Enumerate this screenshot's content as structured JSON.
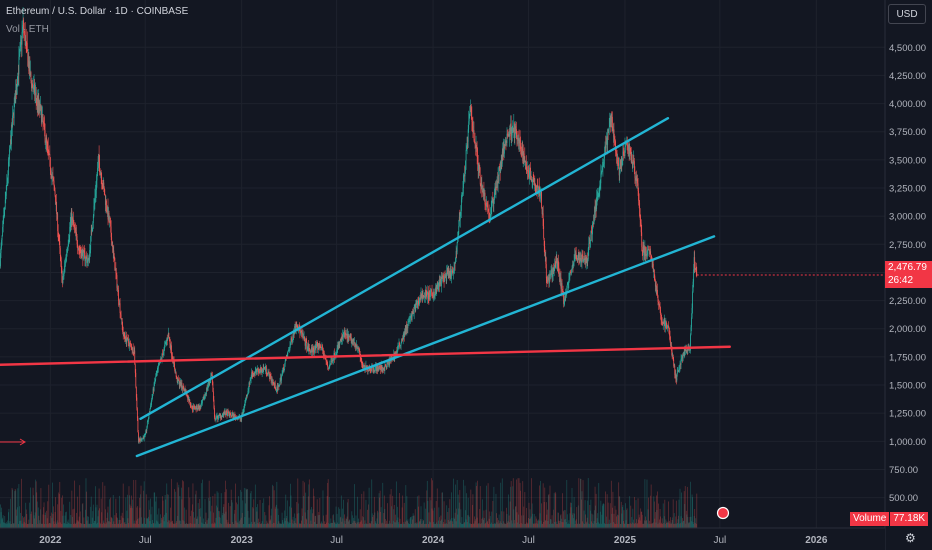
{
  "header": {
    "title": "Ethereum / U.S. Dollar · 1D · COINBASE",
    "volume_label": "Vol · ETH"
  },
  "currency_button": "USD",
  "last_price": {
    "price": "2,476.79",
    "countdown": "26:42",
    "color": "#f23645"
  },
  "volume_badge": {
    "label": "Volume",
    "value": "77.18K"
  },
  "colors": {
    "background": "#131722",
    "up": "#26a69a",
    "down": "#ef5350",
    "trendline": "#22b5d4",
    "support": "#f23645"
  },
  "chart_data": {
    "type": "candlestick",
    "timeframe": "1D",
    "x_tick_labels": [
      "2022",
      "Jul",
      "2023",
      "Jul",
      "2024",
      "Jul",
      "2025",
      "Jul",
      "2026"
    ],
    "x_ticks": [
      "2022-01-01",
      "2022-07-01",
      "2023-01-01",
      "2023-07-01",
      "2024-01-01",
      "2024-07-01",
      "2025-01-01",
      "2025-07-01",
      "2026-01-01"
    ],
    "y_tick_labels": [
      "4,500.00",
      "4,250.00",
      "4,000.00",
      "3,750.00",
      "3,500.00",
      "3,250.00",
      "3,000.00",
      "2,750.00",
      "2,500.00",
      "2,250.00",
      "2,000.00",
      "1,750.00",
      "1,500.00",
      "1,250.00",
      "1,000.00",
      "750.00",
      "500.00"
    ],
    "y_ticks": [
      4500,
      4250,
      4000,
      3750,
      3500,
      3250,
      3000,
      2750,
      2500,
      2250,
      2000,
      1750,
      1500,
      1250,
      1000,
      750,
      500
    ],
    "ylim": [
      230,
      4920
    ],
    "xlim": [
      "2021-09-27",
      "2026-05-12"
    ],
    "price_path": [
      [
        "2021-09-27",
        2600
      ],
      [
        "2021-10-20",
        3800
      ],
      [
        "2021-11-10",
        4700
      ],
      [
        "2021-11-25",
        4200
      ],
      [
        "2021-12-15",
        3900
      ],
      [
        "2022-01-10",
        3200
      ],
      [
        "2022-01-24",
        2400
      ],
      [
        "2022-02-10",
        3000
      ],
      [
        "2022-02-25",
        2700
      ],
      [
        "2022-03-15",
        2600
      ],
      [
        "2022-04-03",
        3500
      ],
      [
        "2022-04-25",
        2900
      ],
      [
        "2022-05-08",
        2400
      ],
      [
        "2022-05-20",
        1950
      ],
      [
        "2022-06-10",
        1800
      ],
      [
        "2022-06-18",
        1000
      ],
      [
        "2022-07-01",
        1050
      ],
      [
        "2022-07-20",
        1550
      ],
      [
        "2022-08-14",
        1950
      ],
      [
        "2022-08-30",
        1550
      ],
      [
        "2022-09-15",
        1450
      ],
      [
        "2022-09-28",
        1300
      ],
      [
        "2022-10-15",
        1300
      ],
      [
        "2022-11-05",
        1600
      ],
      [
        "2022-11-10",
        1200
      ],
      [
        "2022-12-01",
        1250
      ],
      [
        "2022-12-31",
        1200
      ],
      [
        "2023-01-20",
        1600
      ],
      [
        "2023-02-15",
        1650
      ],
      [
        "2023-03-10",
        1450
      ],
      [
        "2023-04-15",
        2050
      ],
      [
        "2023-05-10",
        1800
      ],
      [
        "2023-06-01",
        1850
      ],
      [
        "2023-06-15",
        1650
      ],
      [
        "2023-07-15",
        1950
      ],
      [
        "2023-08-10",
        1850
      ],
      [
        "2023-08-20",
        1650
      ],
      [
        "2023-10-01",
        1650
      ],
      [
        "2023-10-24",
        1800
      ],
      [
        "2023-11-15",
        2050
      ],
      [
        "2023-12-10",
        2300
      ],
      [
        "2023-12-31",
        2300
      ],
      [
        "2024-01-20",
        2450
      ],
      [
        "2024-02-10",
        2500
      ],
      [
        "2024-03-01",
        3400
      ],
      [
        "2024-03-12",
        3950
      ],
      [
        "2024-04-01",
        3300
      ],
      [
        "2024-04-18",
        3000
      ],
      [
        "2024-05-20",
        3700
      ],
      [
        "2024-06-01",
        3800
      ],
      [
        "2024-07-01",
        3400
      ],
      [
        "2024-07-25",
        3200
      ],
      [
        "2024-08-05",
        2400
      ],
      [
        "2024-08-25",
        2600
      ],
      [
        "2024-09-06",
        2250
      ],
      [
        "2024-09-28",
        2650
      ],
      [
        "2024-10-20",
        2600
      ],
      [
        "2024-11-10",
        3200
      ],
      [
        "2024-12-06",
        3900
      ],
      [
        "2024-12-20",
        3400
      ],
      [
        "2025-01-06",
        3650
      ],
      [
        "2025-01-25",
        3300
      ],
      [
        "2025-02-03",
        2700
      ],
      [
        "2025-02-20",
        2650
      ],
      [
        "2025-03-10",
        2100
      ],
      [
        "2025-03-25",
        2000
      ],
      [
        "2025-04-08",
        1550
      ],
      [
        "2025-04-22",
        1780
      ],
      [
        "2025-05-05",
        1820
      ],
      [
        "2025-05-13",
        2600
      ],
      [
        "2025-05-18",
        2476.79
      ]
    ],
    "trendlines": [
      {
        "name": "upper channel",
        "color": "#22b5d4",
        "points": [
          [
            "2022-06-22",
            1200
          ],
          [
            "2025-03-24",
            3870
          ]
        ]
      },
      {
        "name": "lower channel",
        "color": "#22b5d4",
        "points": [
          [
            "2022-06-15",
            870
          ],
          [
            "2025-06-20",
            2820
          ]
        ]
      },
      {
        "name": "support",
        "color": "#f23645",
        "points": [
          [
            "2021-09-27",
            1680
          ],
          [
            "2025-07-20",
            1840
          ]
        ]
      }
    ],
    "last_price": 2476.79,
    "volume_series_label": "Volume",
    "volume_last": "77.18K"
  }
}
